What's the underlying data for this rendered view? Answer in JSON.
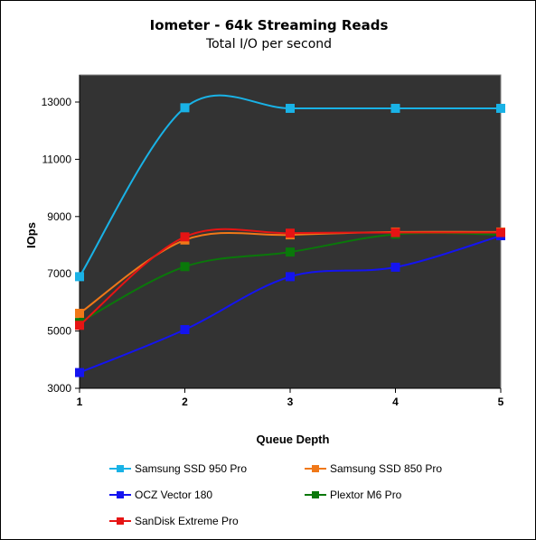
{
  "chart_data": {
    "type": "line",
    "title": "Iometer - 64k Streaming Reads",
    "subtitle": "Total I/O per second",
    "xlabel": "Queue Depth",
    "ylabel": "IOps",
    "x": [
      1,
      2,
      3,
      4,
      5
    ],
    "ylim": [
      3000,
      13000
    ],
    "yticks": [
      3000,
      5000,
      7000,
      9000,
      11000,
      13000
    ],
    "grid": false,
    "smooth": true,
    "plot_background": "#333333",
    "legend_position": "bottom",
    "series": [
      {
        "name": "Samsung SSD 950 Pro",
        "color": "#19b2e6",
        "values": [
          6900,
          12800,
          12780,
          12780,
          12780
        ]
      },
      {
        "name": "Samsung SSD 850 Pro",
        "color": "#f07818",
        "values": [
          5620,
          8180,
          8360,
          8460,
          8460
        ]
      },
      {
        "name": "OCZ Vector 180",
        "color": "#1414f0",
        "values": [
          3550,
          5050,
          6900,
          7230,
          8330
        ]
      },
      {
        "name": "Plextor M6 Pro",
        "color": "#0a780a",
        "values": [
          5300,
          7250,
          7760,
          8380,
          8370
        ]
      },
      {
        "name": "SanDisk Extreme Pro",
        "color": "#e61414",
        "values": [
          5200,
          8290,
          8420,
          8440,
          8440
        ]
      }
    ]
  }
}
